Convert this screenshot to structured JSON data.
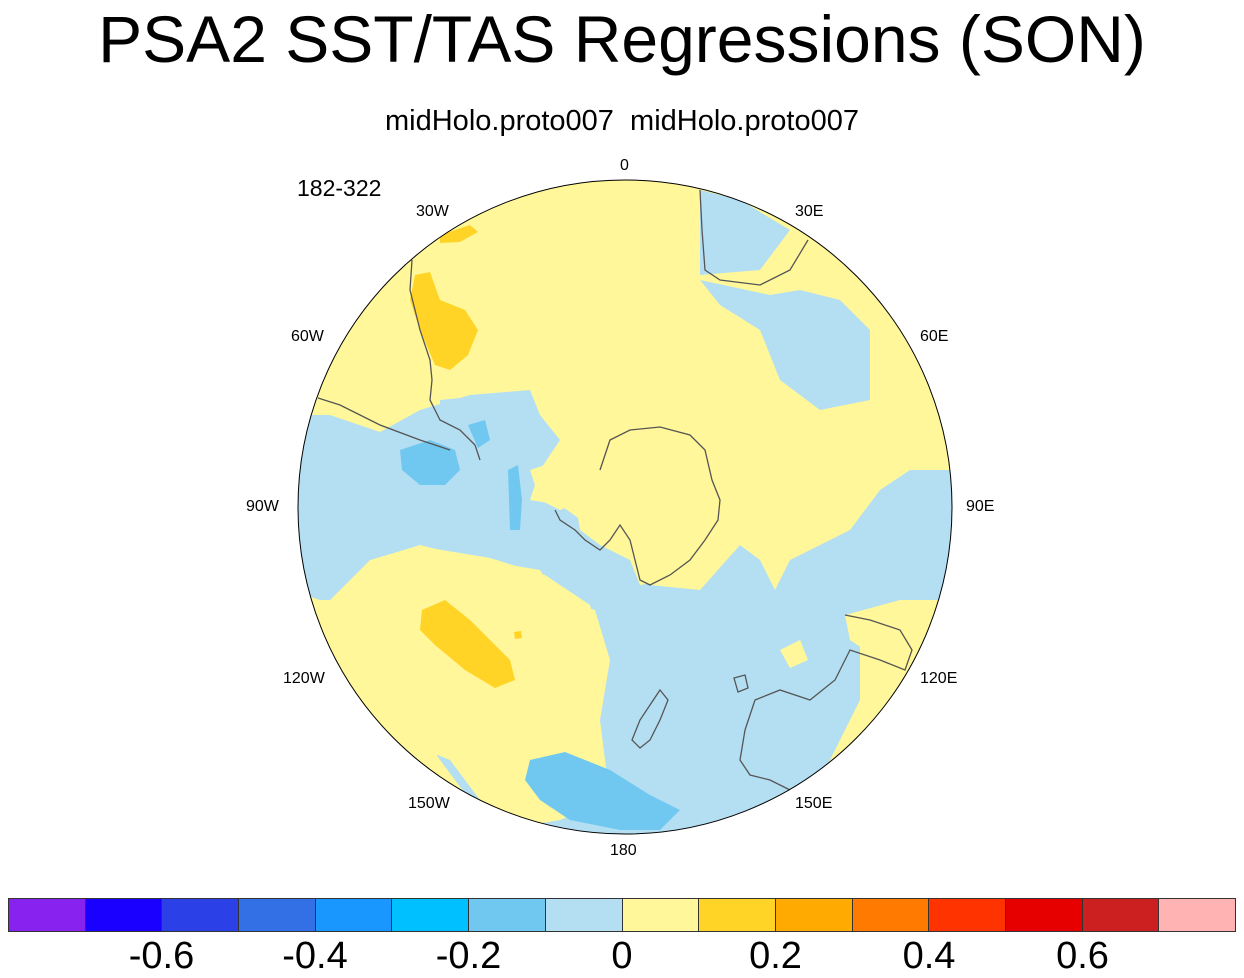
{
  "title": "PSA2 SST/TAS Regressions (SON)",
  "subtitle": "midHolo.proto007  midHolo.proto007",
  "years_label": "182-322",
  "longitude_labels": [
    "0",
    "30E",
    "60E",
    "90E",
    "120E",
    "150E",
    "180",
    "150W",
    "120W",
    "90W",
    "60W",
    "30W"
  ],
  "colors": {
    "land_outline": "#555555",
    "map_border": "#000000",
    "default_fill": "#fff799",
    "negative_fill": "#b4dff2"
  },
  "colorbar": {
    "colors": [
      "#8822ee",
      "#1a00ff",
      "#2b40e6",
      "#3370e6",
      "#1a96ff",
      "#00c0ff",
      "#70c8f0",
      "#b4dff2",
      "#fff799",
      "#ffd426",
      "#ffaa00",
      "#ff7a00",
      "#ff3300",
      "#e60000",
      "#cc1f1f",
      "#ffb3b3"
    ],
    "tick_labels": [
      "-0.6",
      "-0.4",
      "-0.2",
      "0",
      "0.2",
      "0.4",
      "0.6"
    ],
    "tick_values": [
      -0.6,
      -0.4,
      -0.2,
      0,
      0.2,
      0.4,
      0.6
    ],
    "levels": [
      -0.7,
      -0.6,
      -0.5,
      -0.4,
      -0.3,
      -0.2,
      -0.1,
      0,
      0.1,
      0.2,
      0.3,
      0.4,
      0.5,
      0.6,
      0.7
    ]
  }
}
